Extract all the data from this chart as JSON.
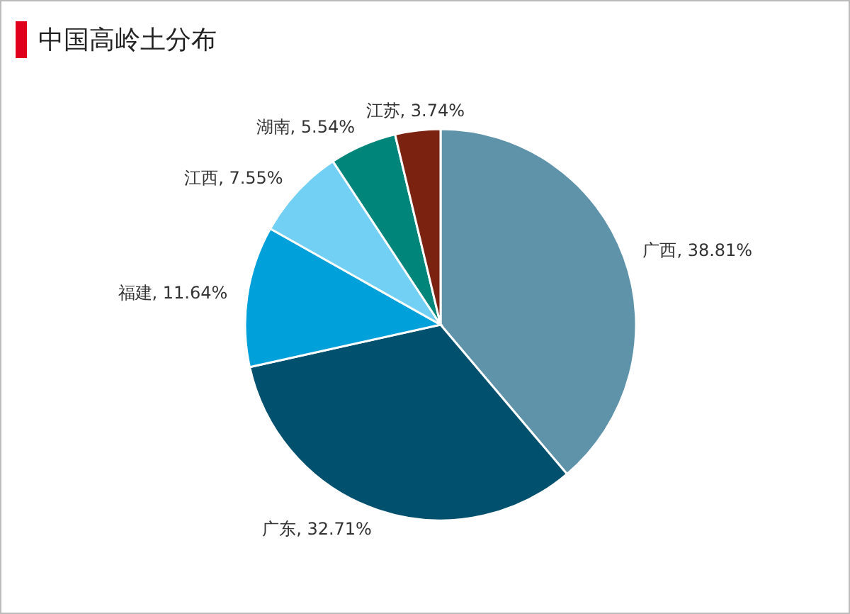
{
  "chart_data": {
    "type": "pie",
    "title": "中国高岭土分布",
    "categories": [
      "广西",
      "广东",
      "福建",
      "江西",
      "湖南",
      "江苏"
    ],
    "values": [
      38.81,
      32.71,
      11.64,
      7.55,
      5.54,
      3.74
    ],
    "value_labels": [
      "38.81%",
      "32.71%",
      "11.64%",
      "7.55%",
      "5.54%",
      "3.74%"
    ],
    "colors": [
      "#5e93aa",
      "#00506e",
      "#00a0da",
      "#72d0f4",
      "#00857a",
      "#7b2310"
    ]
  }
}
